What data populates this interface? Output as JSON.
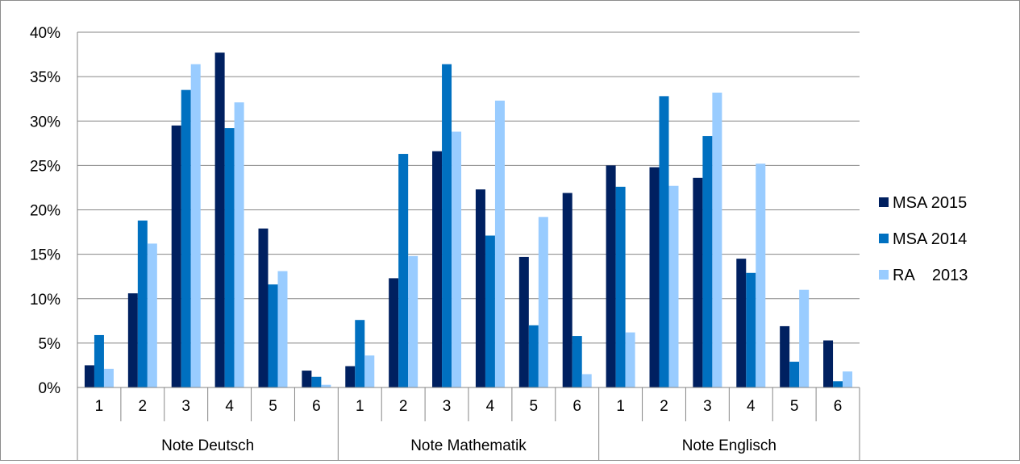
{
  "chart_data": {
    "type": "bar",
    "title": "",
    "xlabel": "",
    "ylabel": "",
    "ylim": [
      0,
      40
    ],
    "yticks": [
      "0%",
      "5%",
      "10%",
      "15%",
      "20%",
      "25%",
      "30%",
      "35%",
      "40%"
    ],
    "grid": true,
    "legend_position": "right",
    "groups": [
      {
        "label": "Note Deutsch",
        "categories": [
          "1",
          "2",
          "3",
          "4",
          "5",
          "6"
        ]
      },
      {
        "label": "Note Mathematik",
        "categories": [
          "1",
          "2",
          "3",
          "4",
          "5",
          "6"
        ]
      },
      {
        "label": "Note Englisch",
        "categories": [
          "1",
          "2",
          "3",
          "4",
          "5",
          "6"
        ]
      }
    ],
    "series": [
      {
        "name": "MSA 2015",
        "color": "#002060",
        "values": [
          2.5,
          10.6,
          29.5,
          37.7,
          17.9,
          1.9,
          2.4,
          12.3,
          26.6,
          22.3,
          14.7,
          21.9,
          25.0,
          24.8,
          23.6,
          14.5,
          6.9,
          5.3
        ]
      },
      {
        "name": "MSA 2014",
        "color": "#0070c0",
        "values": [
          5.9,
          18.8,
          33.5,
          29.2,
          11.6,
          1.2,
          7.6,
          26.3,
          36.4,
          17.1,
          7.0,
          5.8,
          22.6,
          32.8,
          28.3,
          12.9,
          2.9,
          0.7
        ]
      },
      {
        "name": "RA    2013",
        "color": "#99ccff",
        "values": [
          2.1,
          16.2,
          36.4,
          32.1,
          13.1,
          0.3,
          3.6,
          14.8,
          28.8,
          32.3,
          19.2,
          1.5,
          6.2,
          22.7,
          33.2,
          25.2,
          11.0,
          1.8
        ]
      }
    ]
  }
}
